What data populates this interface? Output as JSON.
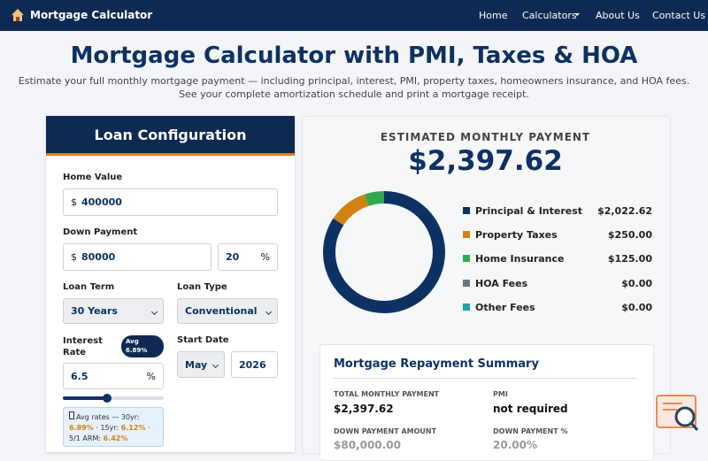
{
  "nav": {
    "brand": "Mortgage Calculator",
    "links": [
      "Home",
      "Calculators",
      "About Us",
      "Contact Us"
    ]
  },
  "header": {
    "title": "Mortgage Calculator with PMI, Taxes & HOA",
    "subtitle": [
      "Estimate your full monthly mortgage payment — including principal, interest, PMI, property taxes, homeowners insurance, and HOA fees.",
      "See your complete amortization schedule and print a mortgage receipt."
    ]
  },
  "form": {
    "title": "Loan Configuration",
    "home_value": {
      "label": "Home Value",
      "prefix": "$",
      "value": "400000"
    },
    "down_payment": {
      "label": "Down Payment",
      "prefix": "$",
      "value": "80000",
      "percent": "20",
      "suffix": "%"
    },
    "loan_term": {
      "label": "Loan Term",
      "value": "30 Years"
    },
    "loan_type": {
      "label": "Loan Type",
      "value": "Conventional"
    },
    "interest_rate": {
      "label": "Interest Rate",
      "badge": [
        "Avg",
        "6.89%"
      ],
      "value": "6.5",
      "suffix": "%"
    },
    "start_date": {
      "label": "Start Date",
      "month": "May",
      "year": "2026"
    },
    "rate_note": {
      "prefix": "Avg rates — 30yr:",
      "r30": "6.89%",
      "l15": "· 15yr:",
      "r15": "6.12%",
      "l51": "· 5/1 ARM:",
      "r51": "6.42%"
    }
  },
  "results": {
    "label": "ESTIMATED MONTHLY PAYMENT",
    "total": "$2,397.62"
  },
  "chart_data": {
    "type": "pie",
    "donut": true,
    "categories": [
      "Principal & Interest",
      "Property Taxes",
      "Home Insurance",
      "HOA Fees",
      "Other Fees"
    ],
    "values": [
      2022.62,
      250,
      125,
      0,
      0
    ],
    "value_labels": [
      "$2,022.62",
      "$250.00",
      "$125.00",
      "$0.00",
      "$0.00"
    ],
    "colors": [
      "#0e3163",
      "#d4820f",
      "#2fa84f",
      "#6c757d",
      "#1fa2b0"
    ]
  },
  "summary": {
    "title": "Mortgage Repayment Summary",
    "items": [
      {
        "label": "TOTAL MONTHLY PAYMENT",
        "value": "$2,397.62"
      },
      {
        "label": "PMI",
        "value": "not required"
      },
      {
        "label": "DOWN PAYMENT AMOUNT",
        "value": "$80,000.00"
      },
      {
        "label": "DOWN PAYMENT %",
        "value": "20.00%"
      }
    ]
  }
}
